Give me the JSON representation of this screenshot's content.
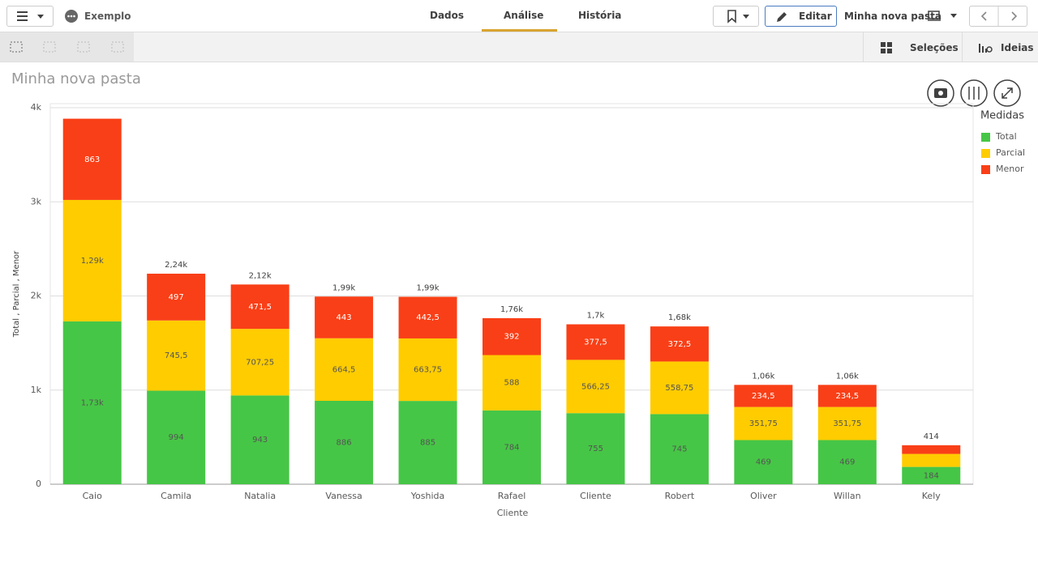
{
  "app": {
    "name": "Exemplo",
    "tabs": [
      "Dados",
      "Análise",
      "História"
    ],
    "edit": "Editar",
    "sheet": "Minha nova pasta",
    "selections": "Seleções",
    "insights": "Ideias"
  },
  "chart_data": {
    "type": "stacked-bar",
    "title": "Minha nova pasta",
    "x_label": "Cliente",
    "y_label": "Total , Parcial , Menor",
    "legend_title": "Medidas",
    "legend_position": "right",
    "grid": true,
    "categories": [
      "Caio",
      "Camila",
      "Natalia",
      "Vanessa",
      "Yoshida",
      "Rafael",
      "Cliente",
      "Robert",
      "Oliver",
      "Willan",
      "Kely"
    ],
    "series": [
      {
        "name": "Total",
        "color": "#46c646",
        "values": [
          1730,
          994,
          943,
          886,
          885,
          784,
          755,
          745,
          469,
          469,
          184
        ],
        "value_labels": [
          "1,73k",
          "994",
          "943",
          "886",
          "885",
          "784",
          "755",
          "745",
          "469",
          "469",
          "184"
        ]
      },
      {
        "name": "Parcial",
        "color": "#ffcc00",
        "values": [
          1290,
          745.5,
          707.25,
          664.5,
          663.75,
          588,
          566.25,
          558.75,
          351.75,
          351.75,
          138
        ],
        "value_labels": [
          "1,29k",
          "745,5",
          "707,25",
          "664,5",
          "663,75",
          "588",
          "566,25",
          "558,75",
          "351,75",
          "351,75",
          null
        ]
      },
      {
        "name": "Menor",
        "color": "#f93f17",
        "values": [
          863,
          497,
          471.5,
          443,
          442.5,
          392,
          377.5,
          372.5,
          234.5,
          234.5,
          92
        ],
        "value_labels": [
          "863",
          "497",
          "471,5",
          "443",
          "442,5",
          "392",
          "377,5",
          "372,5",
          "234,5",
          "234,5",
          null
        ]
      }
    ],
    "stack_total_labels": [
      null,
      "2,24k",
      "2,12k",
      "1,99k",
      "1,99k",
      "1,76k",
      "1,7k",
      "1,68k",
      "1,06k",
      "1,06k",
      "414"
    ],
    "ylim": [
      0,
      4000
    ],
    "yticks": [
      0,
      {
        "value": 1000,
        "label": "1k"
      },
      {
        "value": 2000,
        "label": "2k"
      },
      {
        "value": 3000,
        "label": "3k"
      },
      {
        "value": 4000,
        "label": "4k"
      }
    ]
  }
}
